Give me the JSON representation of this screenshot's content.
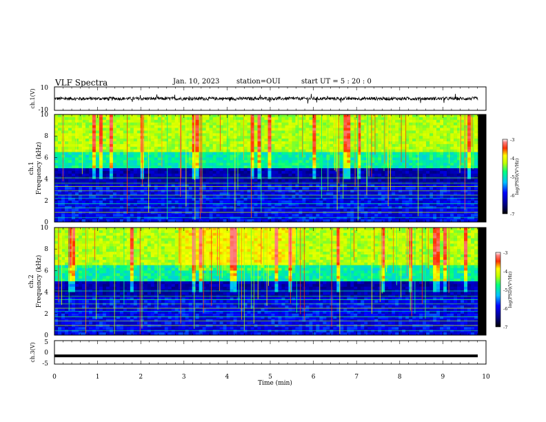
{
  "header": {
    "title": "VLF Spectra",
    "date": "Jan. 10, 2023",
    "station": "station=OUI",
    "start": "start  UT =   5 : 20 : 0"
  },
  "chart_data": [
    {
      "type": "line",
      "name": "ch1-waveform",
      "ylabel": "ch.1(V)",
      "ylim": [
        -10,
        10
      ],
      "yticks": [
        "10",
        "-10"
      ],
      "xlim": [
        0,
        10
      ],
      "description_of_series": "dense noisy voltage trace centred near 0 V, amplitude about ±2 V",
      "baseline": 0,
      "amplitude": 2
    },
    {
      "type": "heatmap",
      "name": "ch1-spectrogram",
      "ylabel": "ch.1\nFrequency (kHz)",
      "ylim": [
        0,
        10
      ],
      "yticks": [
        "0",
        "2",
        "4",
        "6",
        "8",
        "10"
      ],
      "xlim": [
        0,
        9.83
      ],
      "colorbar": {
        "label": "log(PSD)(V²/Hz)",
        "range": [
          -7,
          -3
        ],
        "ticks": [
          "-3",
          "-4",
          "-5",
          "-6",
          "-7"
        ]
      }
    },
    {
      "type": "heatmap",
      "name": "ch2-spectrogram",
      "ylabel": "ch.2\nFrequency (kHz)",
      "ylim": [
        0,
        10
      ],
      "yticks": [
        "0",
        "2",
        "4",
        "6",
        "8",
        "10"
      ],
      "xlim": [
        0,
        9.83
      ],
      "colorbar": {
        "label": "log(PSD)(V²/Hz)",
        "range": [
          -7,
          -3
        ],
        "ticks": [
          "-3",
          "-4",
          "-5",
          "-6",
          "-7"
        ]
      }
    },
    {
      "type": "line",
      "name": "ch3-waveform",
      "ylabel": "ch.3(V)",
      "ylim": [
        -5,
        5
      ],
      "yticks": [
        "5",
        "0",
        "-5"
      ],
      "xlim": [
        0,
        10
      ],
      "baseline": -1.5,
      "amplitude": 0.2
    }
  ],
  "xaxis": {
    "label": "Time (min)",
    "ticks": [
      "0",
      "1",
      "2",
      "3",
      "4",
      "5",
      "6",
      "7",
      "8",
      "9",
      "10"
    ],
    "range": [
      0,
      10
    ]
  },
  "colors": {
    "colormap": [
      "#000080",
      "#0000ff",
      "#00c0ff",
      "#00ff80",
      "#c0ff00",
      "#ffff00",
      "#ff8000",
      "#ff0000",
      "#ffffff"
    ],
    "trace": "#000000"
  }
}
